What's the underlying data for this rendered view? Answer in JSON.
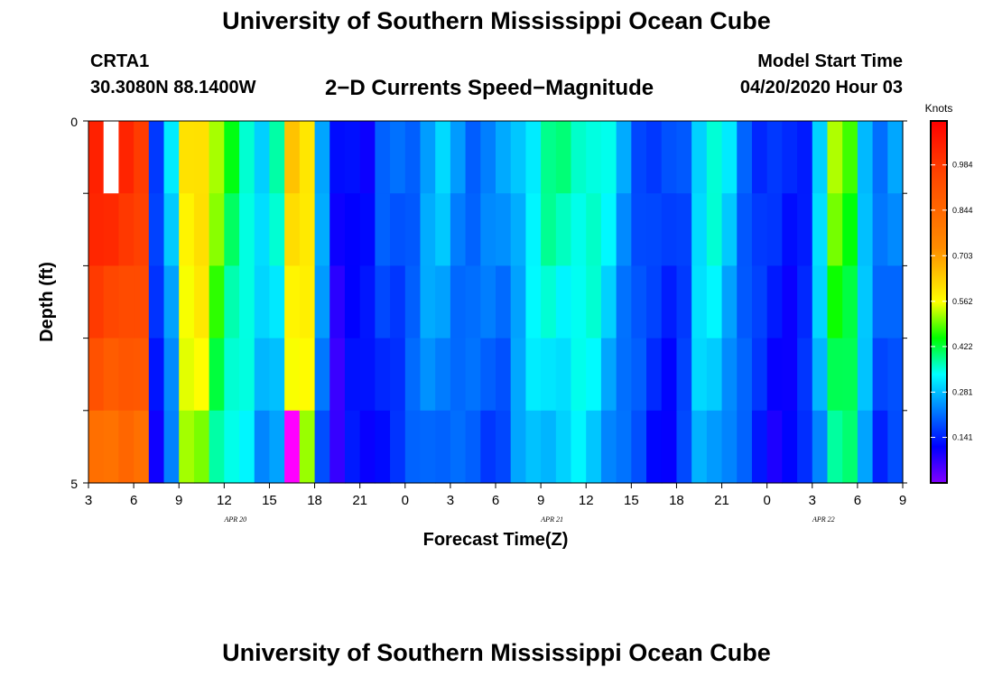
{
  "header": {
    "title": "University of Southern Mississippi Ocean Cube",
    "station_id": "CRTA1",
    "station_coords": "30.3080N 88.1400W",
    "chart_title": "2−D Currents Speed−Magnitude",
    "model_start_label": "Model Start Time",
    "model_start_value": "04/20/2020 Hour 03"
  },
  "footer": {
    "title": "University of Southern Mississippi Ocean Cube"
  },
  "chart_data": {
    "type": "heatmap",
    "title": "2−D Currents Speed−Magnitude",
    "xlabel": "Forecast Time(Z)",
    "ylabel": "Depth (ft)",
    "x_tick_labels": [
      "3",
      "6",
      "9",
      "12",
      "15",
      "18",
      "21",
      "0",
      "3",
      "6",
      "9",
      "12",
      "15",
      "18",
      "21",
      "0",
      "3",
      "6",
      "9"
    ],
    "date_labels": [
      {
        "text": "APR 20",
        "tick_index": 3
      },
      {
        "text": "APR 21",
        "tick_index": 10
      },
      {
        "text": "APR 22",
        "tick_index": 16
      }
    ],
    "y_tick_labels": [
      "0",
      "5"
    ],
    "ylim": [
      0,
      5
    ],
    "depth_rows": 5,
    "hours": 54,
    "start_hour": 3,
    "colorbar": {
      "label": "Knots",
      "ticks": [
        "0.984",
        "0.844",
        "0.703",
        "0.562",
        "0.422",
        "0.281",
        "0.141"
      ],
      "range": [
        0,
        1.12
      ]
    },
    "speed_profile": [
      1.04,
      1.04,
      1.04,
      1.0,
      0.15,
      0.3,
      0.62,
      0.62,
      0.5,
      0.43,
      0.38,
      0.3,
      0.35,
      0.65,
      0.62,
      0.25,
      0.1,
      0.14,
      0.12,
      0.18,
      0.2,
      0.22,
      0.26,
      0.28,
      0.25,
      0.22,
      0.22,
      0.24,
      0.3,
      0.34,
      0.37,
      0.38,
      0.38,
      0.36,
      0.32,
      0.26,
      0.2,
      0.16,
      0.16,
      0.2,
      0.32,
      0.34,
      0.3,
      0.22,
      0.16,
      0.14,
      0.14,
      0.16,
      0.3,
      0.5,
      0.48,
      0.3,
      0.2,
      0.24
    ],
    "depth_factors": [
      1.0,
      0.97,
      0.92,
      0.87,
      0.8
    ],
    "annotations": [
      {
        "hour": 1,
        "row": 0,
        "value": "white"
      },
      {
        "hour": 13,
        "row": 4,
        "value": "magenta"
      }
    ]
  }
}
